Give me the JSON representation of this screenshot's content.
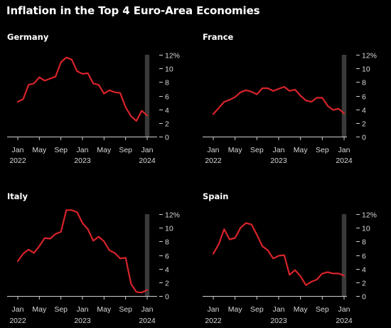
{
  "title": "Inflation in the Top 4 Euro-Area Economies",
  "colors": {
    "line": "#d8232a",
    "highlight": "#3a3a3a",
    "axis": "#cfcfcf",
    "background": "#000000"
  },
  "chart_data": [
    {
      "type": "line",
      "title": "Germany",
      "x": [
        "2022-01",
        "2022-02",
        "2022-03",
        "2022-04",
        "2022-05",
        "2022-06",
        "2022-07",
        "2022-08",
        "2022-09",
        "2022-10",
        "2022-11",
        "2022-12",
        "2023-01",
        "2023-02",
        "2023-03",
        "2023-04",
        "2023-05",
        "2023-06",
        "2023-07",
        "2023-08",
        "2023-09",
        "2023-10",
        "2023-11",
        "2023-12",
        "2024-01"
      ],
      "series": [
        {
          "values": [
            5.1,
            5.5,
            7.6,
            7.8,
            8.7,
            8.2,
            8.5,
            8.8,
            10.9,
            11.6,
            11.3,
            9.6,
            9.2,
            9.3,
            7.8,
            7.6,
            6.3,
            6.8,
            6.5,
            6.4,
            4.3,
            3.0,
            2.3,
            3.8,
            3.1
          ]
        }
      ],
      "highlight": "2024-01",
      "ylim": [
        0,
        12
      ],
      "yticks": [
        "0",
        "2",
        "4",
        "6",
        "8",
        "10",
        "12%"
      ],
      "xticks": [
        {
          "at": "2022-01",
          "label": "Jan",
          "year": "2022"
        },
        {
          "at": "2022-05",
          "label": "May",
          "year": ""
        },
        {
          "at": "2022-09",
          "label": "Sep",
          "year": ""
        },
        {
          "at": "2023-01",
          "label": "Jan",
          "year": "2023"
        },
        {
          "at": "2023-05",
          "label": "May",
          "year": ""
        },
        {
          "at": "2023-09",
          "label": "Sep",
          "year": ""
        },
        {
          "at": "2024-01",
          "label": "Jan",
          "year": "2024"
        }
      ]
    },
    {
      "type": "line",
      "title": "France",
      "x": [
        "2022-01",
        "2022-02",
        "2022-03",
        "2022-04",
        "2022-05",
        "2022-06",
        "2022-07",
        "2022-08",
        "2022-09",
        "2022-10",
        "2022-11",
        "2022-12",
        "2023-01",
        "2023-02",
        "2023-03",
        "2023-04",
        "2023-05",
        "2023-06",
        "2023-07",
        "2023-08",
        "2023-09",
        "2023-10",
        "2023-11",
        "2023-12",
        "2024-01"
      ],
      "series": [
        {
          "values": [
            3.3,
            4.2,
            5.1,
            5.4,
            5.8,
            6.5,
            6.8,
            6.6,
            6.2,
            7.1,
            7.1,
            6.7,
            7.0,
            7.3,
            6.7,
            6.9,
            6.0,
            5.3,
            5.1,
            5.7,
            5.7,
            4.5,
            3.9,
            4.1,
            3.4
          ]
        }
      ],
      "highlight": "2024-01",
      "ylim": [
        0,
        12
      ],
      "yticks": [
        "0",
        "2",
        "4",
        "6",
        "8",
        "10",
        "12%"
      ],
      "xticks": [
        {
          "at": "2022-01",
          "label": "Jan",
          "year": "2022"
        },
        {
          "at": "2022-05",
          "label": "May",
          "year": ""
        },
        {
          "at": "2022-09",
          "label": "Sep",
          "year": ""
        },
        {
          "at": "2023-01",
          "label": "Jan",
          "year": "2023"
        },
        {
          "at": "2023-05",
          "label": "May",
          "year": ""
        },
        {
          "at": "2023-09",
          "label": "Sep",
          "year": ""
        },
        {
          "at": "2024-01",
          "label": "Jan",
          "year": "2024"
        }
      ]
    },
    {
      "type": "line",
      "title": "Italy",
      "x": [
        "2022-01",
        "2022-02",
        "2022-03",
        "2022-04",
        "2022-05",
        "2022-06",
        "2022-07",
        "2022-08",
        "2022-09",
        "2022-10",
        "2022-11",
        "2022-12",
        "2023-01",
        "2023-02",
        "2023-03",
        "2023-04",
        "2023-05",
        "2023-06",
        "2023-07",
        "2023-08",
        "2023-09",
        "2023-10",
        "2023-11",
        "2023-12",
        "2024-01"
      ],
      "series": [
        {
          "values": [
            5.1,
            6.2,
            6.8,
            6.3,
            7.3,
            8.5,
            8.4,
            9.1,
            9.4,
            12.6,
            12.6,
            12.3,
            10.7,
            9.8,
            8.1,
            8.7,
            8.0,
            6.7,
            6.3,
            5.5,
            5.6,
            1.8,
            0.6,
            0.5,
            0.9
          ]
        }
      ],
      "highlight": "2024-01",
      "ylim": [
        0,
        12
      ],
      "yticks": [
        "0",
        "2",
        "4",
        "6",
        "8",
        "10",
        "12%"
      ],
      "xticks": [
        {
          "at": "2022-01",
          "label": "Jan",
          "year": "2022"
        },
        {
          "at": "2022-05",
          "label": "May",
          "year": ""
        },
        {
          "at": "2022-09",
          "label": "Sep",
          "year": ""
        },
        {
          "at": "2023-01",
          "label": "Jan",
          "year": "2023"
        },
        {
          "at": "2023-05",
          "label": "May",
          "year": ""
        },
        {
          "at": "2023-09",
          "label": "Sep",
          "year": ""
        },
        {
          "at": "2024-01",
          "label": "Jan",
          "year": "2024"
        }
      ]
    },
    {
      "type": "line",
      "title": "Spain",
      "x": [
        "2022-01",
        "2022-02",
        "2022-03",
        "2022-04",
        "2022-05",
        "2022-06",
        "2022-07",
        "2022-08",
        "2022-09",
        "2022-10",
        "2022-11",
        "2022-12",
        "2023-01",
        "2023-02",
        "2023-03",
        "2023-04",
        "2023-05",
        "2023-06",
        "2023-07",
        "2023-08",
        "2023-09",
        "2023-10",
        "2023-11",
        "2023-12",
        "2024-01"
      ],
      "series": [
        {
          "values": [
            6.2,
            7.6,
            9.8,
            8.3,
            8.5,
            10.0,
            10.7,
            10.5,
            9.0,
            7.3,
            6.7,
            5.5,
            5.9,
            6.0,
            3.1,
            3.8,
            2.9,
            1.6,
            2.1,
            2.4,
            3.3,
            3.5,
            3.3,
            3.3,
            3.0
          ]
        }
      ],
      "highlight": "2024-01",
      "ylim": [
        0,
        12
      ],
      "yticks": [
        "0",
        "2",
        "4",
        "6",
        "8",
        "10",
        "12%"
      ],
      "xticks": [
        {
          "at": "2022-01",
          "label": "Jan",
          "year": "2022"
        },
        {
          "at": "2022-05",
          "label": "May",
          "year": ""
        },
        {
          "at": "2022-09",
          "label": "Sep",
          "year": ""
        },
        {
          "at": "2023-01",
          "label": "Jan",
          "year": "2023"
        },
        {
          "at": "2023-05",
          "label": "May",
          "year": ""
        },
        {
          "at": "2023-09",
          "label": "Sep",
          "year": ""
        },
        {
          "at": "2024-01",
          "label": "Jan",
          "year": "2024"
        }
      ]
    }
  ]
}
